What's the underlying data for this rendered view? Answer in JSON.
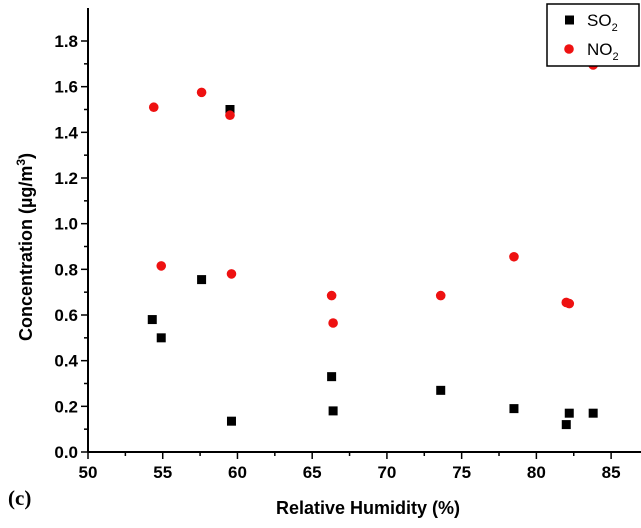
{
  "panel_label": "(c)",
  "chart_data": {
    "type": "scatter",
    "title": "",
    "xlabel": "Relative Humidity (%)",
    "ylabel": {
      "base": "Concentration (µg/m",
      "sup": "3",
      "end": ")"
    },
    "xlim": [
      50,
      87
    ],
    "ylim": [
      0,
      1.8
    ],
    "xticks": [
      50,
      55,
      60,
      65,
      70,
      75,
      80,
      85
    ],
    "yticks": [
      0.0,
      0.2,
      0.4,
      0.6,
      0.8,
      1.0,
      1.2,
      1.4,
      1.6,
      1.8
    ],
    "ytick_labels": [
      "0.0",
      "0.2",
      "0.4",
      "0.6",
      "0.8",
      "1.0",
      "1.2",
      "1.4",
      "1.6",
      "1.8"
    ],
    "grid": false,
    "legend_position": "top-right",
    "series": [
      {
        "name": "SO2",
        "label_base": "SO",
        "label_sub": "2",
        "marker": "square",
        "color": "#000000",
        "points": [
          [
            54.3,
            0.58
          ],
          [
            54.9,
            0.5
          ],
          [
            57.6,
            0.755
          ],
          [
            59.5,
            1.5
          ],
          [
            59.6,
            0.135
          ],
          [
            66.3,
            0.33
          ],
          [
            66.4,
            0.18
          ],
          [
            73.6,
            0.27
          ],
          [
            78.5,
            0.19
          ],
          [
            82.0,
            0.12
          ],
          [
            82.2,
            0.17
          ],
          [
            83.8,
            0.17
          ]
        ]
      },
      {
        "name": "NO2",
        "label_base": "NO",
        "label_sub": "2",
        "marker": "circle",
        "color": "#ee1111",
        "points": [
          [
            54.4,
            1.51
          ],
          [
            54.9,
            0.815
          ],
          [
            57.6,
            1.575
          ],
          [
            59.5,
            1.475
          ],
          [
            59.6,
            0.78
          ],
          [
            66.3,
            0.685
          ],
          [
            66.4,
            0.565
          ],
          [
            73.6,
            0.685
          ],
          [
            78.5,
            0.855
          ],
          [
            82.0,
            0.655
          ],
          [
            82.2,
            0.65
          ],
          [
            83.8,
            1.695
          ]
        ]
      }
    ]
  }
}
